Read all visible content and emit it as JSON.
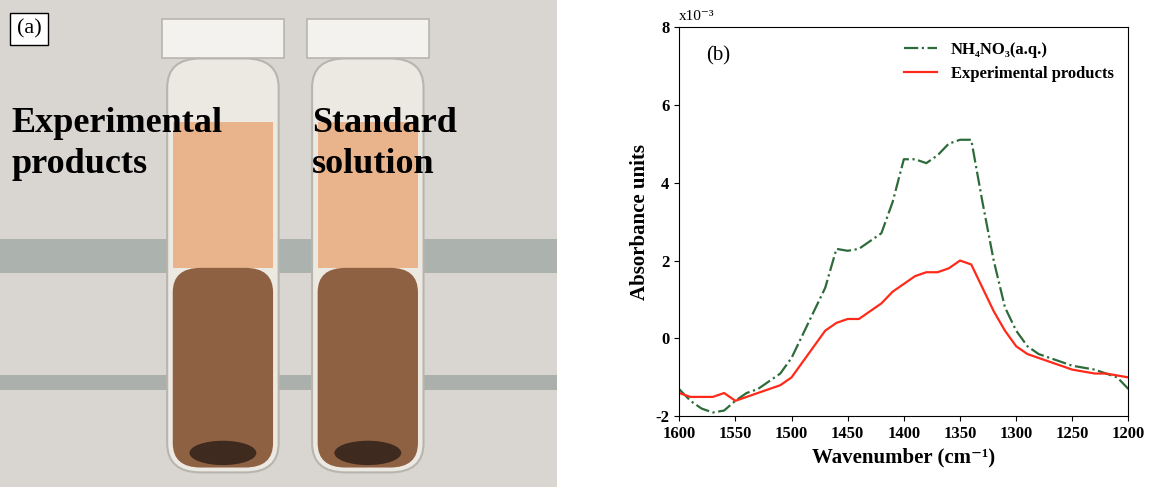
{
  "panel_a": {
    "label": "(a)",
    "texts": [
      [
        "Experimental",
        "products"
      ],
      [
        "Standard",
        "solution"
      ]
    ]
  },
  "chart_data": {
    "type": "line",
    "annotations": [
      "(b)",
      "x10⁻³"
    ],
    "xlabel": "Wavenumber (cm⁻¹)",
    "ylabel": "Absorbance units",
    "x": [
      1600,
      1590,
      1580,
      1570,
      1560,
      1550,
      1540,
      1530,
      1520,
      1510,
      1500,
      1490,
      1480,
      1470,
      1460,
      1450,
      1440,
      1430,
      1420,
      1410,
      1400,
      1390,
      1380,
      1370,
      1360,
      1350,
      1340,
      1330,
      1320,
      1310,
      1300,
      1290,
      1280,
      1270,
      1260,
      1250,
      1240,
      1230,
      1220,
      1210,
      1200
    ],
    "series": [
      {
        "name": "NH₄NO₃(a.q.)",
        "color": "#2e6b3a",
        "line_style": "dashdot",
        "values": [
          -1.3,
          -1.6,
          -1.8,
          -1.9,
          -1.85,
          -1.6,
          -1.4,
          -1.3,
          -1.1,
          -0.9,
          -0.5,
          0.1,
          0.7,
          1.3,
          2.3,
          2.25,
          2.3,
          2.5,
          2.7,
          3.5,
          4.6,
          4.6,
          4.5,
          4.7,
          5.0,
          5.1,
          5.1,
          3.5,
          2.0,
          0.8,
          0.2,
          -0.2,
          -0.4,
          -0.5,
          -0.6,
          -0.7,
          -0.75,
          -0.8,
          -0.9,
          -1.0,
          -1.3
        ]
      },
      {
        "name": "Experimental products",
        "color": "#ff2a1a",
        "line_style": "solid",
        "values": [
          -1.4,
          -1.5,
          -1.5,
          -1.5,
          -1.4,
          -1.6,
          -1.5,
          -1.4,
          -1.3,
          -1.2,
          -1.0,
          -0.6,
          -0.2,
          0.2,
          0.4,
          0.5,
          0.5,
          0.7,
          0.9,
          1.2,
          1.4,
          1.6,
          1.7,
          1.7,
          1.8,
          2.0,
          1.9,
          1.3,
          0.7,
          0.2,
          -0.2,
          -0.4,
          -0.5,
          -0.6,
          -0.7,
          -0.8,
          -0.85,
          -0.9,
          -0.9,
          -0.95,
          -1.0
        ]
      }
    ],
    "xlim": [
      1600,
      1200
    ],
    "xticks": [
      1600,
      1550,
      1500,
      1450,
      1400,
      1350,
      1300,
      1250,
      1200
    ],
    "ylim": [
      -2,
      8
    ],
    "yticks": [
      -2,
      0,
      2,
      4,
      6,
      8
    ],
    "legend": "upper right",
    "grid": false
  }
}
